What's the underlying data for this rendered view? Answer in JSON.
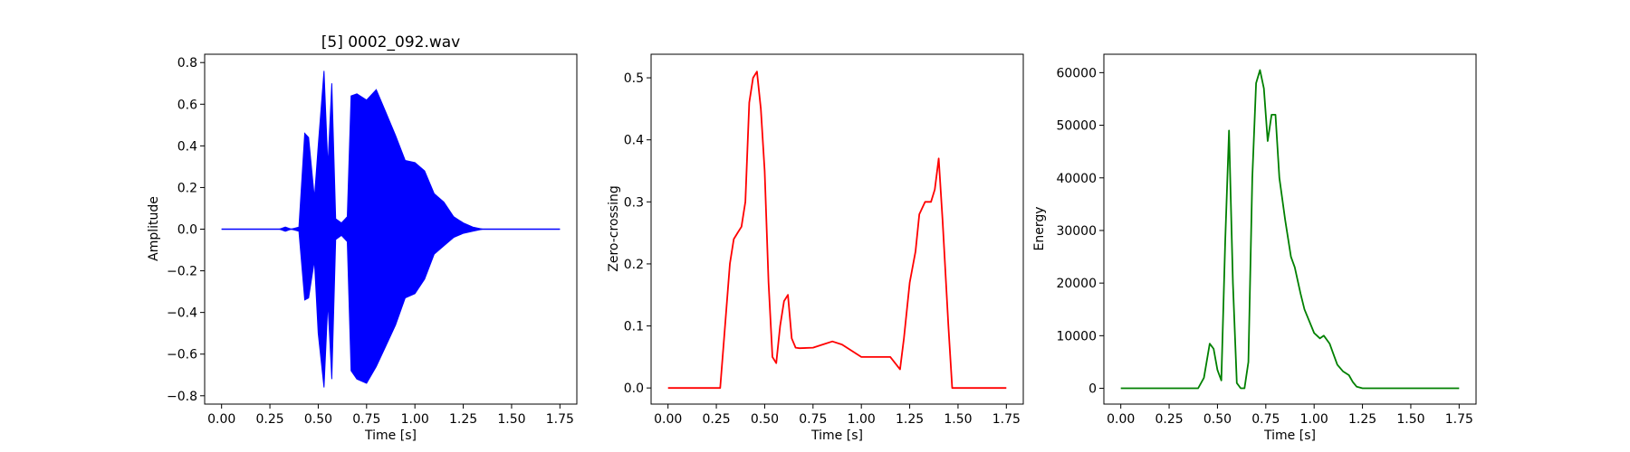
{
  "chart_data": [
    {
      "type": "line",
      "title": "[5] 0002_092.wav",
      "xlabel": "Time [s]",
      "ylabel": "Amplitude",
      "xlim": [
        -0.0875,
        1.8375
      ],
      "ylim": [
        -0.84,
        0.84
      ],
      "xticks": [
        "0.00",
        "0.25",
        "0.50",
        "0.75",
        "1.00",
        "1.25",
        "1.50",
        "1.75"
      ],
      "yticks": [
        "-0.8",
        "-0.6",
        "-0.4",
        "-0.2",
        "0.0",
        "0.2",
        "0.4",
        "0.6",
        "0.8"
      ],
      "grid": false,
      "color": "#0000ff",
      "envelope": {
        "x": [
          0.0,
          0.3,
          0.33,
          0.36,
          0.4,
          0.43,
          0.45,
          0.48,
          0.5,
          0.53,
          0.55,
          0.57,
          0.59,
          0.62,
          0.65,
          0.67,
          0.7,
          0.75,
          0.8,
          0.85,
          0.9,
          0.95,
          1.0,
          1.05,
          1.1,
          1.15,
          1.2,
          1.25,
          1.3,
          1.35,
          1.45,
          1.75
        ],
        "upper": [
          0.0,
          0.0,
          0.01,
          0.0,
          0.01,
          0.46,
          0.44,
          0.15,
          0.4,
          0.76,
          0.3,
          0.7,
          0.05,
          0.03,
          0.06,
          0.64,
          0.65,
          0.62,
          0.67,
          0.56,
          0.45,
          0.33,
          0.32,
          0.28,
          0.17,
          0.13,
          0.06,
          0.03,
          0.01,
          0.0,
          0.0,
          0.0
        ],
        "lower": [
          0.0,
          0.0,
          -0.01,
          0.0,
          -0.01,
          -0.34,
          -0.33,
          -0.15,
          -0.5,
          -0.76,
          -0.35,
          -0.72,
          -0.05,
          -0.03,
          -0.06,
          -0.68,
          -0.72,
          -0.74,
          -0.66,
          -0.56,
          -0.46,
          -0.33,
          -0.31,
          -0.24,
          -0.12,
          -0.08,
          -0.04,
          -0.02,
          -0.01,
          0.0,
          0.0,
          0.0
        ]
      }
    },
    {
      "type": "line",
      "title": "",
      "xlabel": "Time [s]",
      "ylabel": "Zero-crossing",
      "xlim": [
        -0.0875,
        1.8375
      ],
      "ylim": [
        -0.026,
        0.538
      ],
      "xticks": [
        "0.00",
        "0.25",
        "0.50",
        "0.75",
        "1.00",
        "1.25",
        "1.50",
        "1.75"
      ],
      "yticks": [
        "0.0",
        "0.1",
        "0.2",
        "0.3",
        "0.4",
        "0.5"
      ],
      "grid": false,
      "color": "#ff0000",
      "x": [
        0.0,
        0.27,
        0.29,
        0.32,
        0.34,
        0.36,
        0.38,
        0.4,
        0.42,
        0.44,
        0.46,
        0.48,
        0.5,
        0.52,
        0.54,
        0.56,
        0.58,
        0.6,
        0.62,
        0.64,
        0.66,
        0.68,
        0.75,
        0.8,
        0.85,
        0.9,
        0.95,
        1.0,
        1.05,
        1.1,
        1.15,
        1.2,
        1.22,
        1.25,
        1.28,
        1.3,
        1.33,
        1.36,
        1.38,
        1.4,
        1.42,
        1.45,
        1.47,
        1.5,
        1.75
      ],
      "y": [
        0.0,
        0.0,
        0.08,
        0.2,
        0.24,
        0.25,
        0.26,
        0.3,
        0.46,
        0.5,
        0.51,
        0.45,
        0.35,
        0.17,
        0.05,
        0.04,
        0.1,
        0.14,
        0.15,
        0.08,
        0.065,
        0.064,
        0.065,
        0.07,
        0.075,
        0.07,
        0.06,
        0.05,
        0.05,
        0.05,
        0.05,
        0.03,
        0.08,
        0.17,
        0.22,
        0.28,
        0.3,
        0.3,
        0.32,
        0.37,
        0.27,
        0.1,
        0.0,
        0.0,
        0.0
      ]
    },
    {
      "type": "line",
      "title": "",
      "xlabel": "Time [s]",
      "ylabel": "Energy",
      "xlim": [
        -0.0875,
        1.8375
      ],
      "ylim": [
        -3000,
        63500
      ],
      "xticks": [
        "0.00",
        "0.25",
        "0.50",
        "0.75",
        "1.00",
        "1.25",
        "1.50",
        "1.75"
      ],
      "yticks": [
        "0",
        "10000",
        "20000",
        "30000",
        "40000",
        "50000",
        "60000"
      ],
      "grid": false,
      "color": "#008000",
      "x": [
        0.0,
        0.4,
        0.43,
        0.46,
        0.48,
        0.5,
        0.52,
        0.54,
        0.56,
        0.58,
        0.6,
        0.62,
        0.64,
        0.66,
        0.68,
        0.7,
        0.72,
        0.74,
        0.76,
        0.78,
        0.8,
        0.82,
        0.85,
        0.88,
        0.9,
        0.93,
        0.95,
        1.0,
        1.03,
        1.05,
        1.08,
        1.1,
        1.12,
        1.15,
        1.18,
        1.2,
        1.22,
        1.25,
        1.75
      ],
      "y": [
        0,
        0,
        2000,
        8500,
        7500,
        3500,
        1500,
        28000,
        49000,
        20000,
        1000,
        0,
        0,
        5000,
        40000,
        58000,
        60500,
        57000,
        47000,
        52000,
        52000,
        40000,
        32000,
        25000,
        23000,
        18000,
        15000,
        10500,
        9500,
        10000,
        8500,
        6500,
        4500,
        3200,
        2500,
        1200,
        300,
        0,
        0
      ]
    }
  ]
}
